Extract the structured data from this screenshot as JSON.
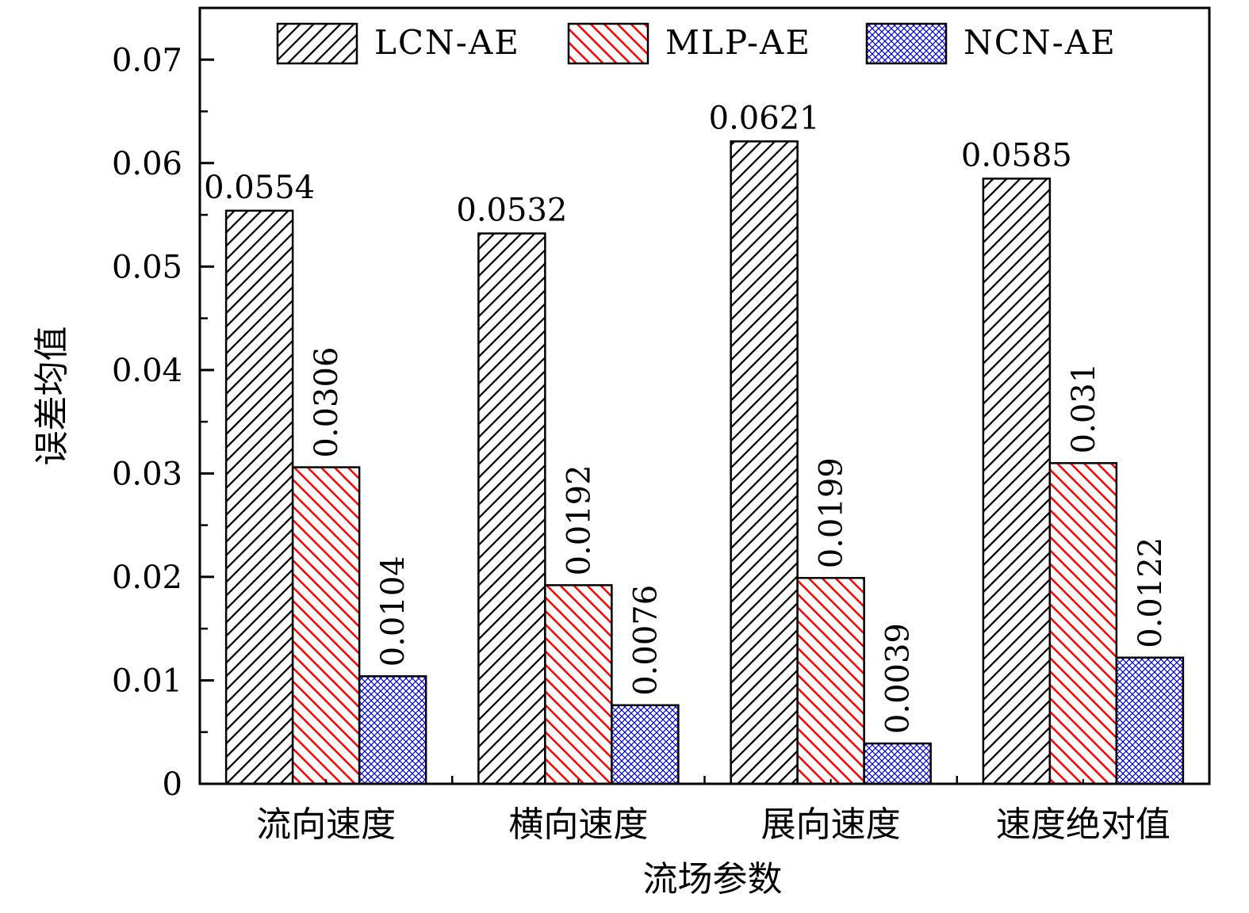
{
  "chart_data": {
    "type": "bar",
    "categories": [
      "流向速度",
      "横向速度",
      "展向速度",
      "速度绝对值"
    ],
    "series": [
      {
        "name": "LCN-AE",
        "values": [
          0.0554,
          0.0532,
          0.0621,
          0.0585
        ],
        "labels": [
          "0.0554",
          "0.0532",
          "0.0621",
          "0.0585"
        ],
        "color": "#000000",
        "pattern": "hatch-black"
      },
      {
        "name": "MLP-AE",
        "values": [
          0.0306,
          0.0192,
          0.0199,
          0.031
        ],
        "labels": [
          "0.0306",
          "0.0192",
          "0.0199",
          "0.031"
        ],
        "color": "#ff0000",
        "pattern": "hatch-red"
      },
      {
        "name": "NCN-AE",
        "values": [
          0.0104,
          0.0076,
          0.0039,
          0.0122
        ],
        "labels": [
          "0.0104",
          "0.0076",
          "0.0039",
          "0.0122"
        ],
        "color": "#0000cc",
        "pattern": "crosshatch-blue"
      }
    ],
    "title": "",
    "xlabel": "流场参数",
    "ylabel": "误差均值",
    "ylim": [
      0,
      0.075
    ],
    "yticks": [
      0,
      0.01,
      0.02,
      0.03,
      0.04,
      0.05,
      0.06,
      0.07
    ],
    "ytick_labels": [
      "0",
      "0.01",
      "0.02",
      "0.03",
      "0.04",
      "0.05",
      "0.06",
      "0.07"
    ],
    "grid": false,
    "legend_position": "top"
  }
}
